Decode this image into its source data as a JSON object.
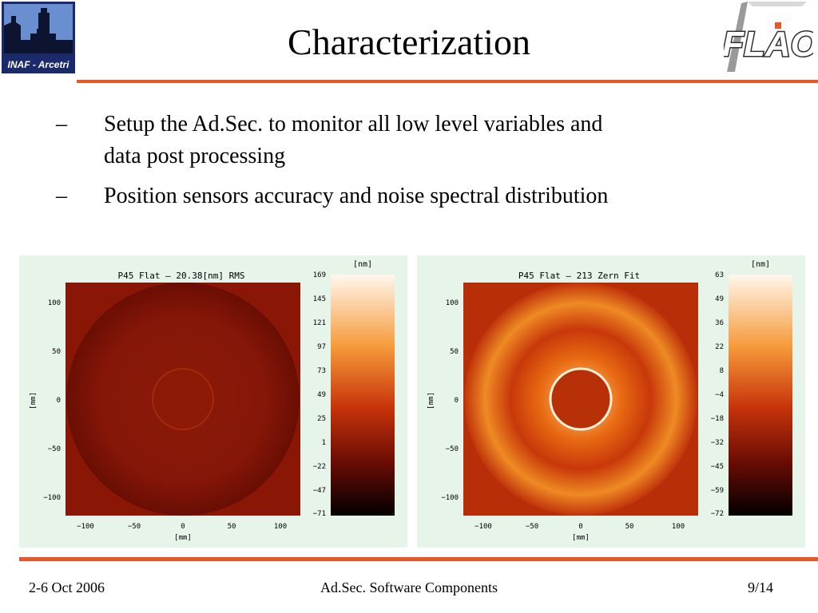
{
  "header": {
    "title": "Characterization",
    "logo_left_text": "INAF - Arcetri",
    "logo_right_text": "FLAO"
  },
  "bullets": [
    {
      "dash": "–",
      "text": "Setup the Ad.Sec. to monitor all low level variables and data post processing"
    },
    {
      "dash": "–",
      "text": "Position sensors accuracy and noise spectral distribution"
    }
  ],
  "plots": [
    {
      "title": "P45 Flat – 20.38[nm] RMS",
      "unit_label": "[nm]",
      "xlabel": "[mm]",
      "ylabel": "[mm]",
      "x_ticks": [
        "−100",
        "−50",
        "0",
        "50",
        "100"
      ],
      "y_ticks": [
        "100",
        "50",
        "0",
        "−50",
        "−100"
      ],
      "colorbar_ticks": [
        "169",
        "145",
        "121",
        "97",
        "73",
        "49",
        "25",
        "1",
        "−22",
        "−47",
        "−71"
      ]
    },
    {
      "title": "P45 Flat – 213 Zern Fit",
      "unit_label": "[nm]",
      "xlabel": "[mm]",
      "ylabel": "[mm]",
      "x_ticks": [
        "−100",
        "−50",
        "0",
        "50",
        "100"
      ],
      "y_ticks": [
        "100",
        "50",
        "0",
        "−50",
        "−100"
      ],
      "colorbar_ticks": [
        "63",
        "49",
        "36",
        "22",
        "8",
        "−4",
        "−18",
        "−32",
        "−45",
        "−59",
        "−72"
      ]
    }
  ],
  "ghost_text": "i",
  "footer": {
    "date": "2-6 Oct 2006",
    "center": "Ad.Sec. Software Components",
    "page": "9/14"
  },
  "colors": {
    "accent_rule": "#e8562a",
    "panel_bg": "#e7f4ea",
    "map_dark": "#7a1206",
    "map_bright": "#f0801c"
  }
}
